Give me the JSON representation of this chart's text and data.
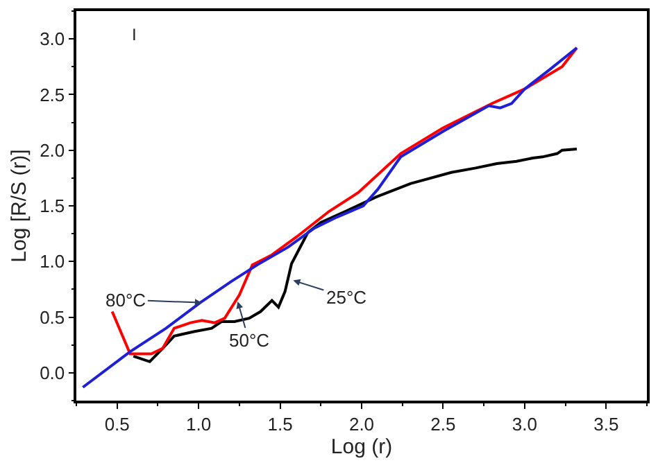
{
  "chart_data": {
    "type": "line",
    "xlabel": "Log (r)",
    "ylabel": "Log [R/S (r)]",
    "xlim": [
      0.25,
      3.75
    ],
    "ylim": [
      -0.25,
      3.25
    ],
    "xticks": [
      {
        "value": 0.5,
        "label": "0.5"
      },
      {
        "value": 1.0,
        "label": "1.0"
      },
      {
        "value": 1.5,
        "label": "1.5"
      },
      {
        "value": 2.0,
        "label": "2.0"
      },
      {
        "value": 2.5,
        "label": "2.5"
      },
      {
        "value": 3.0,
        "label": "3.0"
      },
      {
        "value": 3.5,
        "label": "3.5"
      }
    ],
    "yticks": [
      {
        "value": 0.0,
        "label": "0.0"
      },
      {
        "value": 0.5,
        "label": "0.5"
      },
      {
        "value": 1.0,
        "label": "1.0"
      },
      {
        "value": 1.5,
        "label": "1.5"
      },
      {
        "value": 2.0,
        "label": "2.0"
      },
      {
        "value": 2.5,
        "label": "2.5"
      },
      {
        "value": 3.0,
        "label": "3.0"
      }
    ],
    "marker": "none",
    "line_style": "solid",
    "series": [
      {
        "color": "#000000",
        "x": [
          0.6,
          0.7,
          0.78,
          0.85,
          0.97,
          1.08,
          1.14,
          1.22,
          1.31,
          1.38,
          1.45,
          1.49,
          1.53,
          1.57,
          1.62,
          1.67,
          1.75,
          1.9,
          2.09,
          2.3,
          2.55,
          2.7,
          2.83,
          2.95,
          3.05,
          3.11,
          3.2,
          3.23,
          3.32
        ],
        "values": [
          0.15,
          0.1,
          0.22,
          0.33,
          0.37,
          0.4,
          0.46,
          0.46,
          0.49,
          0.55,
          0.65,
          0.59,
          0.73,
          0.98,
          1.12,
          1.26,
          1.35,
          1.45,
          1.58,
          1.7,
          1.8,
          1.84,
          1.88,
          1.9,
          1.93,
          1.94,
          1.97,
          2.0,
          2.01
        ]
      },
      {
        "color": "#ff0000",
        "x": [
          0.47,
          0.58,
          0.71,
          0.78,
          0.85,
          0.95,
          1.02,
          1.1,
          1.16,
          1.25,
          1.33,
          1.45,
          1.6,
          1.8,
          1.98,
          2.24,
          2.5,
          2.8,
          3.0,
          3.23,
          3.32
        ],
        "values": [
          0.55,
          0.17,
          0.17,
          0.22,
          0.4,
          0.45,
          0.47,
          0.45,
          0.49,
          0.7,
          0.97,
          1.06,
          1.22,
          1.45,
          1.62,
          1.97,
          2.2,
          2.42,
          2.55,
          2.75,
          2.92
        ]
      },
      {
        "color": "#1f1fd6",
        "x": [
          0.29,
          0.58,
          0.8,
          1.01,
          1.2,
          1.36,
          1.55,
          1.71,
          1.85,
          2.01,
          2.1,
          2.24,
          2.5,
          2.78,
          2.85,
          2.92,
          3.0,
          3.15,
          3.32
        ],
        "values": [
          -0.13,
          0.19,
          0.4,
          0.63,
          0.82,
          0.97,
          1.13,
          1.3,
          1.4,
          1.5,
          1.65,
          1.94,
          2.17,
          2.4,
          2.38,
          2.42,
          2.55,
          2.72,
          2.92
        ]
      }
    ],
    "annotations": [
      "I",
      {
        "text": "80°C",
        "x": 1.02,
        "y": 0.63
      },
      {
        "text": "50°C",
        "x": 1.24,
        "y": 0.64
      },
      {
        "text": "25°C",
        "x": 1.58,
        "y": 0.83
      }
    ]
  }
}
